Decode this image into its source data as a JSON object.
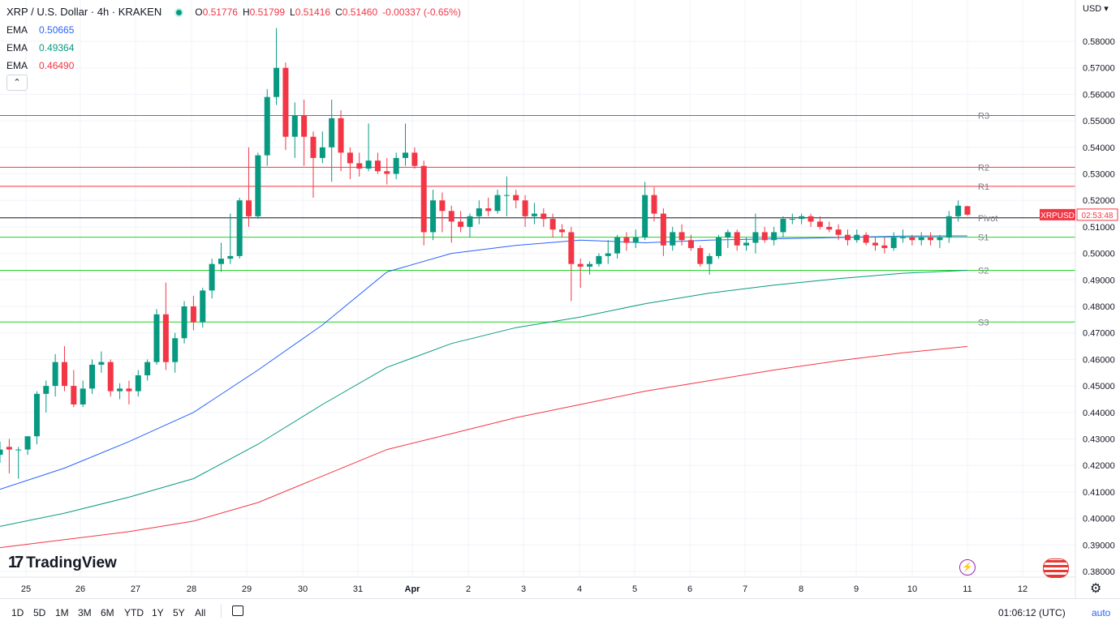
{
  "header": {
    "symbol_title": "XRP / U.S. Dollar · 4h · KRAKEN",
    "status_dot_color": "#089981",
    "ohlc": {
      "o_label": "O",
      "o": "0.51776",
      "h_label": "H",
      "h": "0.51799",
      "l_label": "L",
      "l": "0.51416",
      "c_label": "C",
      "c": "0.51460",
      "change": "-0.00337 (-0.65%)"
    },
    "ema": [
      {
        "label": "EMA",
        "value": "0.50665",
        "color": "#2962ff"
      },
      {
        "label": "EMA",
        "value": "0.49364",
        "color": "#089981"
      },
      {
        "label": "EMA",
        "value": "0.46490",
        "color": "#f23645"
      }
    ],
    "collapse_icon": "chevron-up-icon",
    "collapse_glyph": "⌃"
  },
  "currency": "USD ▾",
  "price_badge": {
    "symbol": "XRPUSD",
    "countdown": "02:53:48",
    "color": "#f23645"
  },
  "brand": {
    "name": "TradingView",
    "mark": "17"
  },
  "bottom_bar": {
    "timeframes": [
      "1D",
      "5D",
      "1M",
      "3M",
      "6M",
      "YTD",
      "1Y",
      "5Y",
      "All"
    ],
    "time": "01:06:12 (UTC)",
    "auto_label": "auto",
    "gear_glyph": "⚙",
    "bolt_glyph": "⚡"
  },
  "chart_data": {
    "type": "candlestick",
    "title": "XRP / U.S. Dollar · 4h · KRAKEN",
    "ylim": [
      0.378,
      0.585
    ],
    "y_ticks": [
      "0.58000",
      "0.57000",
      "0.56000",
      "0.55000",
      "0.54000",
      "0.53000",
      "0.52000",
      "0.51000",
      "0.50000",
      "0.49000",
      "0.48000",
      "0.47000",
      "0.46000",
      "0.45000",
      "0.44000",
      "0.43000",
      "0.42000",
      "0.41000",
      "0.40000",
      "0.39000",
      "0.38000"
    ],
    "x_ticks": [
      "25",
      "26",
      "27",
      "28",
      "29",
      "30",
      "31",
      "Apr",
      "2",
      "3",
      "4",
      "5",
      "6",
      "7",
      "8",
      "9",
      "10",
      "11",
      "12"
    ],
    "grid": true,
    "up_color": "#089981",
    "down_color": "#f23645",
    "candles": [
      [
        0.424,
        0.429,
        0.421,
        0.426
      ],
      [
        0.427,
        0.43,
        0.417,
        0.426
      ],
      [
        0.426,
        0.427,
        0.415,
        0.426
      ],
      [
        0.426,
        0.431,
        0.424,
        0.431
      ],
      [
        0.431,
        0.448,
        0.428,
        0.447
      ],
      [
        0.447,
        0.452,
        0.44,
        0.45
      ],
      [
        0.45,
        0.462,
        0.446,
        0.459
      ],
      [
        0.459,
        0.465,
        0.448,
        0.45
      ],
      [
        0.45,
        0.456,
        0.442,
        0.443
      ],
      [
        0.443,
        0.452,
        0.442,
        0.449
      ],
      [
        0.449,
        0.46,
        0.447,
        0.458
      ],
      [
        0.458,
        0.463,
        0.455,
        0.459
      ],
      [
        0.459,
        0.46,
        0.446,
        0.448
      ],
      [
        0.448,
        0.451,
        0.445,
        0.449
      ],
      [
        0.449,
        0.452,
        0.443,
        0.448
      ],
      [
        0.448,
        0.456,
        0.446,
        0.454
      ],
      [
        0.454,
        0.46,
        0.452,
        0.459
      ],
      [
        0.459,
        0.479,
        0.458,
        0.477
      ],
      [
        0.477,
        0.489,
        0.456,
        0.459
      ],
      [
        0.459,
        0.47,
        0.455,
        0.468
      ],
      [
        0.468,
        0.482,
        0.466,
        0.48
      ],
      [
        0.48,
        0.484,
        0.471,
        0.474
      ],
      [
        0.474,
        0.487,
        0.472,
        0.486
      ],
      [
        0.486,
        0.498,
        0.483,
        0.496
      ],
      [
        0.496,
        0.504,
        0.493,
        0.498
      ],
      [
        0.498,
        0.515,
        0.496,
        0.499
      ],
      [
        0.499,
        0.521,
        0.498,
        0.52
      ],
      [
        0.52,
        0.54,
        0.51,
        0.514
      ],
      [
        0.514,
        0.538,
        0.513,
        0.537
      ],
      [
        0.537,
        0.562,
        0.533,
        0.559
      ],
      [
        0.559,
        0.585,
        0.556,
        0.57
      ],
      [
        0.57,
        0.572,
        0.539,
        0.544
      ],
      [
        0.544,
        0.557,
        0.536,
        0.552
      ],
      [
        0.552,
        0.558,
        0.533,
        0.544
      ],
      [
        0.544,
        0.546,
        0.521,
        0.536
      ],
      [
        0.536,
        0.546,
        0.534,
        0.54
      ],
      [
        0.54,
        0.558,
        0.527,
        0.551
      ],
      [
        0.551,
        0.554,
        0.531,
        0.538
      ],
      [
        0.538,
        0.54,
        0.528,
        0.534
      ],
      [
        0.534,
        0.538,
        0.529,
        0.532
      ],
      [
        0.532,
        0.549,
        0.531,
        0.535
      ],
      [
        0.535,
        0.538,
        0.53,
        0.531
      ],
      [
        0.531,
        0.536,
        0.526,
        0.53
      ],
      [
        0.53,
        0.538,
        0.528,
        0.536
      ],
      [
        0.536,
        0.549,
        0.533,
        0.538
      ],
      [
        0.538,
        0.54,
        0.532,
        0.533
      ],
      [
        0.533,
        0.535,
        0.503,
        0.508
      ],
      [
        0.508,
        0.524,
        0.505,
        0.52
      ],
      [
        0.52,
        0.523,
        0.508,
        0.516
      ],
      [
        0.516,
        0.518,
        0.504,
        0.512
      ],
      [
        0.512,
        0.516,
        0.508,
        0.51
      ],
      [
        0.51,
        0.515,
        0.506,
        0.514
      ],
      [
        0.514,
        0.52,
        0.511,
        0.517
      ],
      [
        0.517,
        0.521,
        0.514,
        0.516
      ],
      [
        0.516,
        0.524,
        0.515,
        0.522
      ],
      [
        0.522,
        0.529,
        0.514,
        0.522
      ],
      [
        0.522,
        0.524,
        0.517,
        0.52
      ],
      [
        0.52,
        0.522,
        0.51,
        0.514
      ],
      [
        0.514,
        0.519,
        0.511,
        0.515
      ],
      [
        0.515,
        0.517,
        0.51,
        0.513
      ],
      [
        0.513,
        0.515,
        0.506,
        0.509
      ],
      [
        0.509,
        0.511,
        0.506,
        0.508
      ],
      [
        0.508,
        0.51,
        0.482,
        0.496
      ],
      [
        0.496,
        0.498,
        0.487,
        0.495
      ],
      [
        0.495,
        0.497,
        0.492,
        0.496
      ],
      [
        0.496,
        0.5,
        0.495,
        0.499
      ],
      [
        0.499,
        0.505,
        0.496,
        0.5
      ],
      [
        0.5,
        0.507,
        0.498,
        0.506
      ],
      [
        0.506,
        0.508,
        0.501,
        0.504
      ],
      [
        0.504,
        0.509,
        0.502,
        0.506
      ],
      [
        0.506,
        0.527,
        0.505,
        0.522
      ],
      [
        0.522,
        0.525,
        0.512,
        0.515
      ],
      [
        0.515,
        0.517,
        0.499,
        0.503
      ],
      [
        0.503,
        0.51,
        0.501,
        0.508
      ],
      [
        0.508,
        0.511,
        0.503,
        0.505
      ],
      [
        0.505,
        0.507,
        0.501,
        0.502
      ],
      [
        0.502,
        0.503,
        0.495,
        0.496
      ],
      [
        0.496,
        0.5,
        0.492,
        0.499
      ],
      [
        0.499,
        0.507,
        0.498,
        0.506
      ],
      [
        0.506,
        0.509,
        0.502,
        0.508
      ],
      [
        0.508,
        0.509,
        0.501,
        0.503
      ],
      [
        0.503,
        0.506,
        0.501,
        0.504
      ],
      [
        0.504,
        0.515,
        0.5,
        0.508
      ],
      [
        0.508,
        0.51,
        0.504,
        0.505
      ],
      [
        0.505,
        0.51,
        0.503,
        0.508
      ],
      [
        0.508,
        0.514,
        0.506,
        0.513
      ],
      [
        0.513,
        0.515,
        0.511,
        0.513
      ],
      [
        0.513,
        0.515,
        0.511,
        0.514
      ],
      [
        0.514,
        0.515,
        0.51,
        0.512
      ],
      [
        0.512,
        0.514,
        0.509,
        0.51
      ],
      [
        0.51,
        0.512,
        0.508,
        0.509
      ],
      [
        0.509,
        0.511,
        0.505,
        0.507
      ],
      [
        0.507,
        0.509,
        0.503,
        0.505
      ],
      [
        0.505,
        0.509,
        0.504,
        0.507
      ],
      [
        0.507,
        0.508,
        0.503,
        0.504
      ],
      [
        0.504,
        0.506,
        0.501,
        0.503
      ],
      [
        0.503,
        0.506,
        0.5,
        0.502
      ],
      [
        0.502,
        0.508,
        0.501,
        0.506
      ],
      [
        0.506,
        0.509,
        0.504,
        0.506
      ],
      [
        0.506,
        0.507,
        0.503,
        0.505
      ],
      [
        0.505,
        0.508,
        0.503,
        0.506
      ],
      [
        0.506,
        0.508,
        0.503,
        0.505
      ],
      [
        0.505,
        0.507,
        0.502,
        0.506
      ],
      [
        0.506,
        0.516,
        0.504,
        0.514
      ],
      [
        0.514,
        0.52,
        0.512,
        0.518
      ],
      [
        0.5178,
        0.518,
        0.5142,
        0.5146
      ]
    ],
    "series": [
      {
        "name": "EMA",
        "color": "#2962ff",
        "values": [
          0.411,
          0.419,
          0.429,
          0.44,
          0.456,
          0.473,
          0.493,
          0.5,
          0.503,
          0.505,
          0.504,
          0.505,
          0.5055,
          0.506,
          0.5065,
          0.5066
        ]
      },
      {
        "name": "EMA",
        "color": "#089981",
        "values": [
          0.397,
          0.402,
          0.408,
          0.415,
          0.428,
          0.443,
          0.457,
          0.466,
          0.472,
          0.476,
          0.481,
          0.485,
          0.488,
          0.4905,
          0.4925,
          0.4936
        ]
      },
      {
        "name": "EMA",
        "color": "#f23645",
        "values": [
          0.389,
          0.392,
          0.395,
          0.399,
          0.406,
          0.416,
          0.426,
          0.432,
          0.438,
          0.443,
          0.448,
          0.452,
          0.456,
          0.4595,
          0.4625,
          0.4649
        ]
      }
    ],
    "levels": [
      {
        "label": "R3",
        "value": 0.552,
        "color": "#f23645"
      },
      {
        "label": "R2",
        "value": 0.5325,
        "color": "#f23645"
      },
      {
        "label": "R1",
        "value": 0.5253,
        "color": "#f23645"
      },
      {
        "label": "Pivot",
        "value": 0.5134,
        "color": "#131722"
      },
      {
        "label": "S1",
        "value": 0.5061,
        "color": "#22d422"
      },
      {
        "label": "S2",
        "value": 0.4936,
        "color": "#22d422"
      },
      {
        "label": "S3",
        "value": 0.4741,
        "color": "#22d422"
      }
    ]
  }
}
